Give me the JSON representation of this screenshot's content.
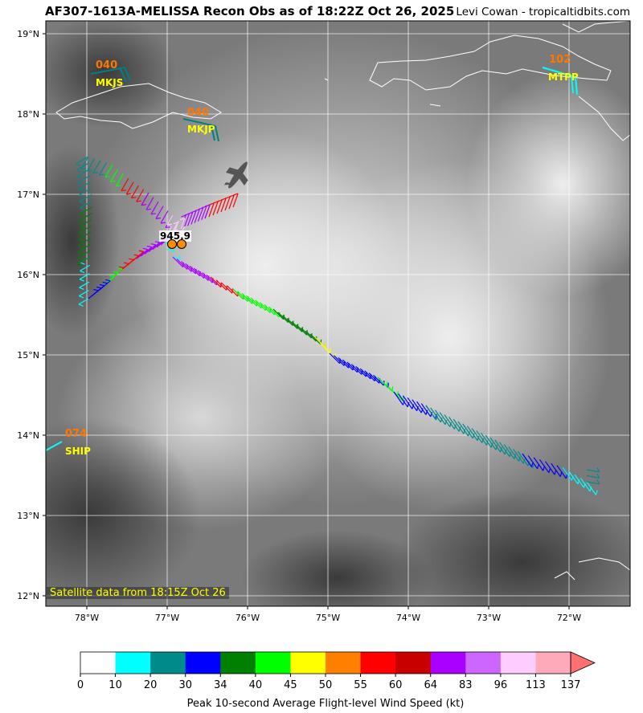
{
  "title": "AF307-1613A-MELISSA Recon Obs as of 18:22Z Oct 26, 2025",
  "credit": "Levi Cowan - tropicaltidbits.com",
  "satellite_note": "Satellite data from 18:15Z Oct 26",
  "latitude_labels": [
    "19°N",
    "18°N",
    "17°N",
    "16°N",
    "15°N",
    "14°N",
    "13°N",
    "12°N"
  ],
  "longitude_labels": [
    "78°W",
    "77°W",
    "76°W",
    "75°W",
    "74°W",
    "73°W",
    "72°W"
  ],
  "center_pressure_label": "945.9",
  "stations": [
    {
      "value": "040",
      "id": "MKJS",
      "color": "#008080"
    },
    {
      "value": "040",
      "id": "MKJP",
      "color": "#008080"
    },
    {
      "value": "102",
      "id": "MTPP",
      "color": "#00ffff"
    },
    {
      "value": "074",
      "id": "SHIP",
      "color": "#00ffff"
    }
  ],
  "colorbar": {
    "title": "Peak 10-second Average Flight-level Wind Speed (kt)",
    "ticks": [
      "0",
      "10",
      "20",
      "30",
      "34",
      "40",
      "45",
      "50",
      "55",
      "60",
      "64",
      "83",
      "96",
      "113",
      "137"
    ],
    "colors": [
      "#ffffff",
      "#00ffff",
      "#008b8b",
      "#0000ff",
      "#008000",
      "#00ff00",
      "#ffff00",
      "#ff7f00",
      "#ff0000",
      "#c80000",
      "#aa00ff",
      "#cc66ff",
      "#ffccff",
      "#ffaabb"
    ],
    "extend_color": "#ff7070"
  }
}
